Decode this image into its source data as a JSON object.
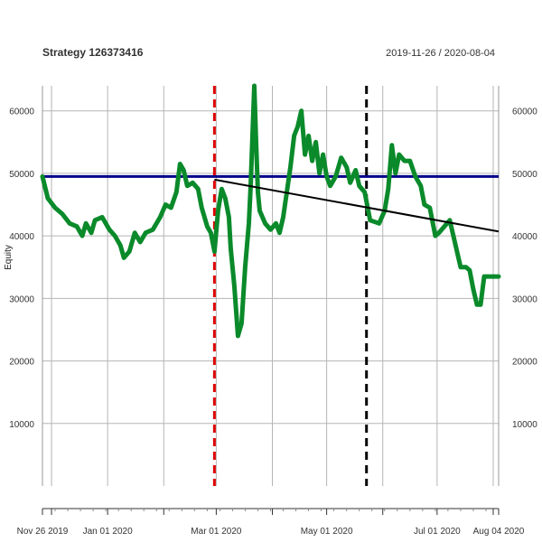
{
  "chart_data": {
    "type": "line",
    "title": "Strategy 126373416",
    "subtitle": "2019-11-26 / 2020-08-04",
    "ylabel": "Equity",
    "xlim": [
      "2019-11-26",
      "2020-08-04"
    ],
    "ylim": [
      0,
      64000
    ],
    "grid": true,
    "y_ticks": [
      10000,
      20000,
      30000,
      40000,
      50000,
      60000
    ],
    "y_tick_labels": [
      "10000",
      "20000",
      "30000",
      "40000",
      "50000",
      "60000"
    ],
    "x_ticks": [
      "2019-11-26",
      "2020-01-01",
      "2020-03-01",
      "2020-05-01",
      "2020-07-01",
      "2020-08-04"
    ],
    "x_tick_labels": [
      "Nov 26 2019",
      "Jan 01 2020",
      "Mar 01 2020",
      "May 01 2020",
      "Jul 01 2020",
      "Aug 04 2020"
    ],
    "x_minor_ticks": [
      "2019-12-01",
      "2020-02-01",
      "2020-04-01",
      "2020-06-01",
      "2020-08-01"
    ],
    "series": [
      {
        "color": "#0a8a2a",
        "points": [
          [
            "2019-11-26",
            49500
          ],
          [
            "2019-11-29",
            46000
          ],
          [
            "2019-12-03",
            44500
          ],
          [
            "2019-12-07",
            43500
          ],
          [
            "2019-12-11",
            42000
          ],
          [
            "2019-12-15",
            41500
          ],
          [
            "2019-12-18",
            40000
          ],
          [
            "2019-12-20",
            42000
          ],
          [
            "2019-12-23",
            40500
          ],
          [
            "2019-12-25",
            42500
          ],
          [
            "2019-12-29",
            43000
          ],
          [
            "2020-01-02",
            41000
          ],
          [
            "2020-01-05",
            40000
          ],
          [
            "2020-01-08",
            38500
          ],
          [
            "2020-01-10",
            36500
          ],
          [
            "2020-01-13",
            37500
          ],
          [
            "2020-01-16",
            40500
          ],
          [
            "2020-01-19",
            39000
          ],
          [
            "2020-01-22",
            40500
          ],
          [
            "2020-01-26",
            41000
          ],
          [
            "2020-01-30",
            43000
          ],
          [
            "2020-02-02",
            45000
          ],
          [
            "2020-02-05",
            44500
          ],
          [
            "2020-02-08",
            47000
          ],
          [
            "2020-02-10",
            51500
          ],
          [
            "2020-02-12",
            50500
          ],
          [
            "2020-02-14",
            48000
          ],
          [
            "2020-02-17",
            48500
          ],
          [
            "2020-02-20",
            47500
          ],
          [
            "2020-02-22",
            44500
          ],
          [
            "2020-02-25",
            41500
          ],
          [
            "2020-02-27",
            40500
          ],
          [
            "2020-02-29",
            37500
          ],
          [
            "2020-03-02",
            44000
          ],
          [
            "2020-03-04",
            47500
          ],
          [
            "2020-03-06",
            46000
          ],
          [
            "2020-03-08",
            43000
          ],
          [
            "2020-03-09",
            38000
          ],
          [
            "2020-03-11",
            32000
          ],
          [
            "2020-03-13",
            24000
          ],
          [
            "2020-03-15",
            26000
          ],
          [
            "2020-03-17",
            35000
          ],
          [
            "2020-03-19",
            42000
          ],
          [
            "2020-03-20",
            48000
          ],
          [
            "2020-03-21",
            56000
          ],
          [
            "2020-03-22",
            64000
          ],
          [
            "2020-03-23",
            55000
          ],
          [
            "2020-03-24",
            47000
          ],
          [
            "2020-03-25",
            44000
          ],
          [
            "2020-03-28",
            42000
          ],
          [
            "2020-03-31",
            41000
          ],
          [
            "2020-04-03",
            42000
          ],
          [
            "2020-04-05",
            40500
          ],
          [
            "2020-04-07",
            43000
          ],
          [
            "2020-04-09",
            47000
          ],
          [
            "2020-04-11",
            51000
          ],
          [
            "2020-04-13",
            56000
          ],
          [
            "2020-04-15",
            57500
          ],
          [
            "2020-04-17",
            60000
          ],
          [
            "2020-04-19",
            53000
          ],
          [
            "2020-04-21",
            56000
          ],
          [
            "2020-04-23",
            52000
          ],
          [
            "2020-04-25",
            55000
          ],
          [
            "2020-04-27",
            50000
          ],
          [
            "2020-04-29",
            53000
          ],
          [
            "2020-05-01",
            49500
          ],
          [
            "2020-05-03",
            48000
          ],
          [
            "2020-05-06",
            49500
          ],
          [
            "2020-05-09",
            52500
          ],
          [
            "2020-05-12",
            51000
          ],
          [
            "2020-05-14",
            48500
          ],
          [
            "2020-05-17",
            50500
          ],
          [
            "2020-05-19",
            48000
          ],
          [
            "2020-05-22",
            47000
          ],
          [
            "2020-05-25",
            42500
          ],
          [
            "2020-05-30",
            42000
          ],
          [
            "2020-06-02",
            44000
          ],
          [
            "2020-06-04",
            47500
          ],
          [
            "2020-06-06",
            54500
          ],
          [
            "2020-06-08",
            50000
          ],
          [
            "2020-06-10",
            53000
          ],
          [
            "2020-06-13",
            52000
          ],
          [
            "2020-06-16",
            52000
          ],
          [
            "2020-06-19",
            49500
          ],
          [
            "2020-06-22",
            48000
          ],
          [
            "2020-06-24",
            45000
          ],
          [
            "2020-06-27",
            44500
          ],
          [
            "2020-06-30",
            40000
          ],
          [
            "2020-07-02",
            40500
          ],
          [
            "2020-07-05",
            41500
          ],
          [
            "2020-07-08",
            42500
          ],
          [
            "2020-07-10",
            40000
          ],
          [
            "2020-07-12",
            37500
          ],
          [
            "2020-07-14",
            35000
          ],
          [
            "2020-07-17",
            35000
          ],
          [
            "2020-07-19",
            34500
          ],
          [
            "2020-07-21",
            31500
          ],
          [
            "2020-07-23",
            29000
          ],
          [
            "2020-07-25",
            29000
          ],
          [
            "2020-07-27",
            33500
          ],
          [
            "2020-08-04",
            33500
          ]
        ]
      }
    ],
    "horizontal_line": {
      "y": 49500,
      "color": "#00008b"
    },
    "trend_line": {
      "from": [
        "2020-02-29",
        49000
      ],
      "to": [
        "2020-08-04",
        40700
      ],
      "color": "#000000"
    },
    "vertical_markers": [
      {
        "x": "2020-02-29",
        "color": "#dd0000",
        "style": "dashed"
      },
      {
        "x": "2020-05-23",
        "color": "#000000",
        "style": "dashed"
      }
    ]
  }
}
